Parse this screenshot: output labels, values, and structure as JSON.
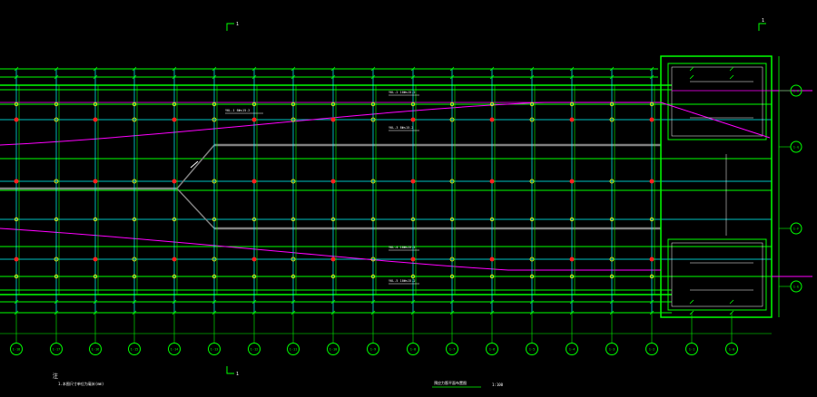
{
  "colors": {
    "background": "#000000",
    "frame": "#00ff00",
    "grid": "#00ffff",
    "tendon": "#ff00ff",
    "column_red": "#ff2020",
    "column_yellow": "#ffff00",
    "beam_gray": "#808080",
    "annotation": "#ffffff"
  },
  "section_marks": {
    "top_left": "1",
    "top_right": "1",
    "bottom": "1"
  },
  "bottom_axes": [
    "1-18",
    "1-17",
    "1-16",
    "1-15",
    "1-14",
    "1-13",
    "1-12",
    "1-11",
    "1-10",
    "1-9",
    "1-8",
    "1-7",
    "1-6",
    "1-5",
    "1-4",
    "1-3",
    "1-2",
    "1-1",
    "1-0"
  ],
  "right_axes": [
    "1-H",
    "1-G",
    "1-F",
    "1-E"
  ],
  "notes": {
    "note_marker": "注",
    "note_text": "1.本图尺寸单位为毫米(mm)",
    "drawing_title": "预应力筋平面布置图",
    "scale": "1:100"
  },
  "labels": {
    "tendon_1": "YKL-1 8Φs15.2",
    "tendon_2": "YKL-2 10Φs15.2",
    "tendon_3": "YKL-3 8Φs15.2",
    "tendon_4": "YKL-4 10Φs15.2",
    "tendon_5": "YKL-5 10Φs15.2"
  }
}
